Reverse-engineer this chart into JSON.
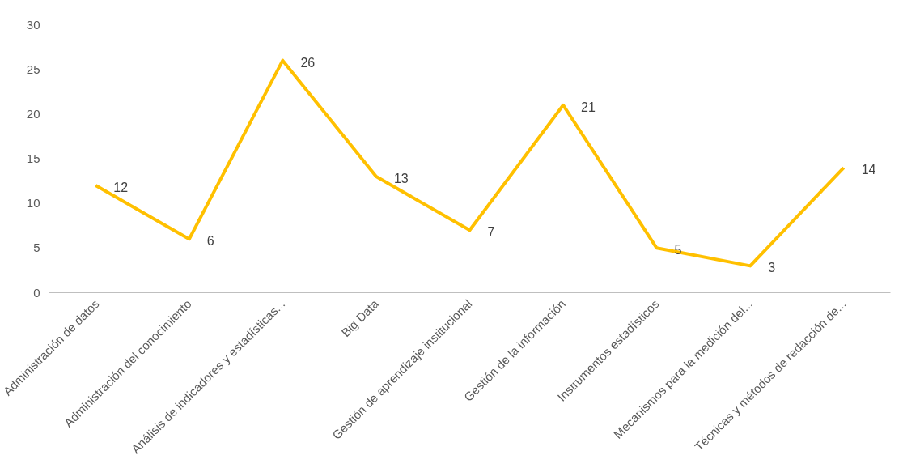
{
  "chart_data": {
    "type": "line",
    "categories": [
      "Administración de datos",
      "Administración del conocimiento",
      "Análisis de indicadores y estadísticas...",
      "Big Data",
      "Gestión de aprendizaje institucional",
      "Gestión de la información",
      "Instrumentos estadísticos",
      "Mecanismos para la medición del...",
      "Técnicas y métodos de redacción de..."
    ],
    "series": [
      {
        "color": "#ffc000",
        "values": [
          12,
          6,
          26,
          13,
          7,
          21,
          5,
          3,
          14
        ]
      }
    ],
    "ylim": [
      0,
      30
    ],
    "yticks": [
      0,
      5,
      10,
      15,
      20,
      25,
      30
    ],
    "grid": false,
    "data_labels": true,
    "marker": "none",
    "line_style": "solid"
  }
}
